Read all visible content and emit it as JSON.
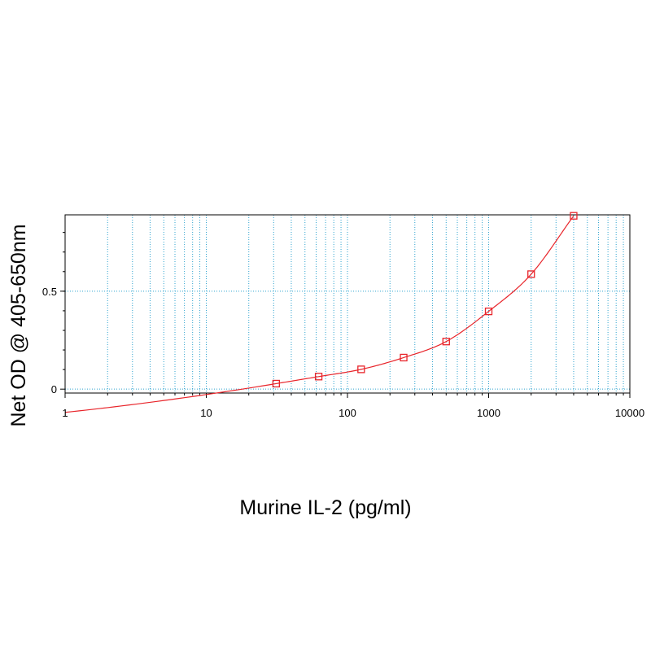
{
  "chart_data": {
    "type": "scatter",
    "title": "",
    "xlabel": "Murine IL-2 (pg/ml)",
    "ylabel": "Net OD @ 405-650nm",
    "x_scale": "log",
    "xlim": [
      1,
      10000
    ],
    "ylim": [
      -0.02,
      0.89
    ],
    "grid": true,
    "x_tick_labels": [
      {
        "value": 1,
        "label": "1"
      },
      {
        "value": 10,
        "label": "10"
      },
      {
        "value": 100,
        "label": "100"
      },
      {
        "value": 1000,
        "label": "1000"
      },
      {
        "value": 10000,
        "label": "10000"
      }
    ],
    "y_tick_labels": [
      {
        "value": 0,
        "label": "0"
      },
      {
        "value": 0.5,
        "label": "0.5"
      }
    ],
    "series": [
      {
        "x": [
          31.25,
          62.5,
          125,
          250,
          500,
          1000,
          2000,
          4000
        ],
        "y": [
          0.028,
          0.064,
          0.101,
          0.161,
          0.243,
          0.397,
          0.587,
          0.885
        ],
        "marker": "open-square",
        "fit": "smooth curve"
      }
    ],
    "colors": {
      "series": "#e8242a",
      "grid": "#2fa3cf",
      "axes": "#000000"
    }
  }
}
